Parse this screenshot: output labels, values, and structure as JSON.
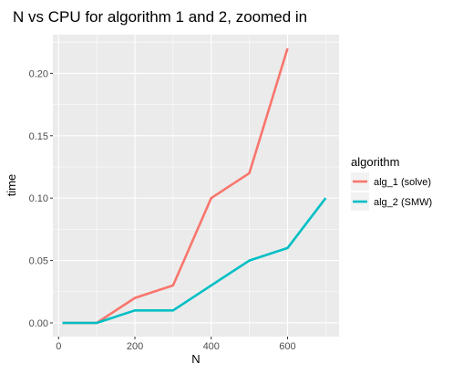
{
  "chart_data": {
    "type": "line",
    "title": "N vs CPU for algorithm 1 and 2, zoomed in",
    "xlabel": "N",
    "ylabel": "time",
    "xlim": [
      -15,
      735
    ],
    "ylim": [
      -0.011,
      0.231
    ],
    "x_ticks": [
      0,
      200,
      400,
      600
    ],
    "x_tick_labels": [
      "0",
      "200",
      "400",
      "600"
    ],
    "y_ticks": [
      0.0,
      0.05,
      0.1,
      0.15,
      0.2
    ],
    "y_tick_labels": [
      "0.00",
      "0.05",
      "0.10",
      "0.15",
      "0.20"
    ],
    "grid": true,
    "background": "#ebebeb",
    "legend": {
      "title": "algorithm",
      "placement": "right"
    },
    "series": [
      {
        "name": "alg_1 (solve)",
        "color": "#f8766d",
        "x": [
          10,
          100,
          200,
          300,
          400,
          500,
          600
        ],
        "y": [
          0.0,
          0.0,
          0.02,
          0.03,
          0.1,
          0.12,
          0.22
        ]
      },
      {
        "name": "alg_2 (SMW)",
        "color": "#00bfc4",
        "x": [
          10,
          100,
          200,
          300,
          400,
          500,
          600,
          700
        ],
        "y": [
          0.0,
          0.0,
          0.01,
          0.01,
          0.03,
          0.05,
          0.06,
          0.1
        ]
      }
    ]
  }
}
